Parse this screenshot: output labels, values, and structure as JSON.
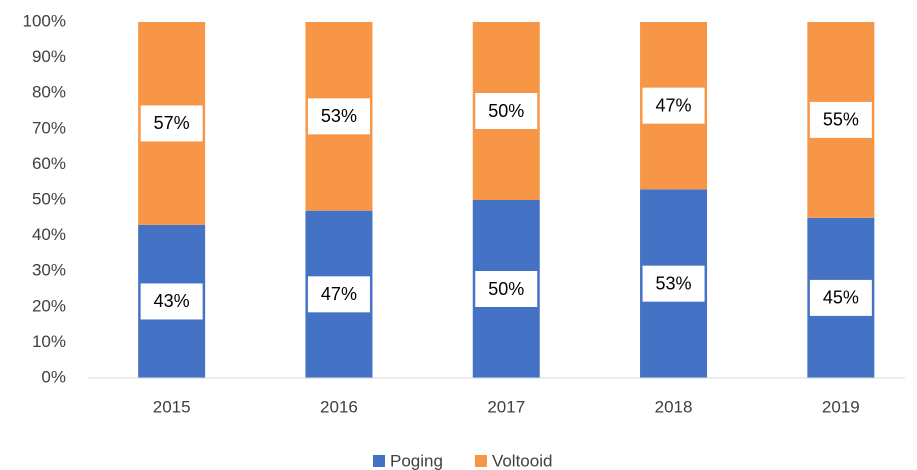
{
  "chart_data": {
    "type": "stacked_bar",
    "categories": [
      "2015",
      "2016",
      "2017",
      "2018",
      "2019"
    ],
    "series": [
      {
        "name": "Poging",
        "color": "#4472c4",
        "values": [
          43,
          47,
          50,
          53,
          45
        ],
        "value_labels": [
          "43%",
          "47%",
          "50%",
          "53%",
          "45%"
        ]
      },
      {
        "name": "Voltooid",
        "color": "#f79646",
        "values": [
          57,
          53,
          50,
          47,
          55
        ],
        "value_labels": [
          "57%",
          "53%",
          "50%",
          "47%",
          "55%"
        ]
      }
    ],
    "ylim": [
      0,
      100
    ],
    "yticks": [
      {
        "value": 0,
        "label": "0%"
      },
      {
        "value": 10,
        "label": "10%"
      },
      {
        "value": 20,
        "label": "20%"
      },
      {
        "value": 30,
        "label": "30%"
      },
      {
        "value": 40,
        "label": "40%"
      },
      {
        "value": 50,
        "label": "50%"
      },
      {
        "value": 60,
        "label": "60%"
      },
      {
        "value": 70,
        "label": "70%"
      },
      {
        "value": 80,
        "label": "80%"
      },
      {
        "value": 90,
        "label": "90%"
      },
      {
        "value": 100,
        "label": "100%"
      }
    ],
    "grid": false,
    "legend": "bottom"
  }
}
